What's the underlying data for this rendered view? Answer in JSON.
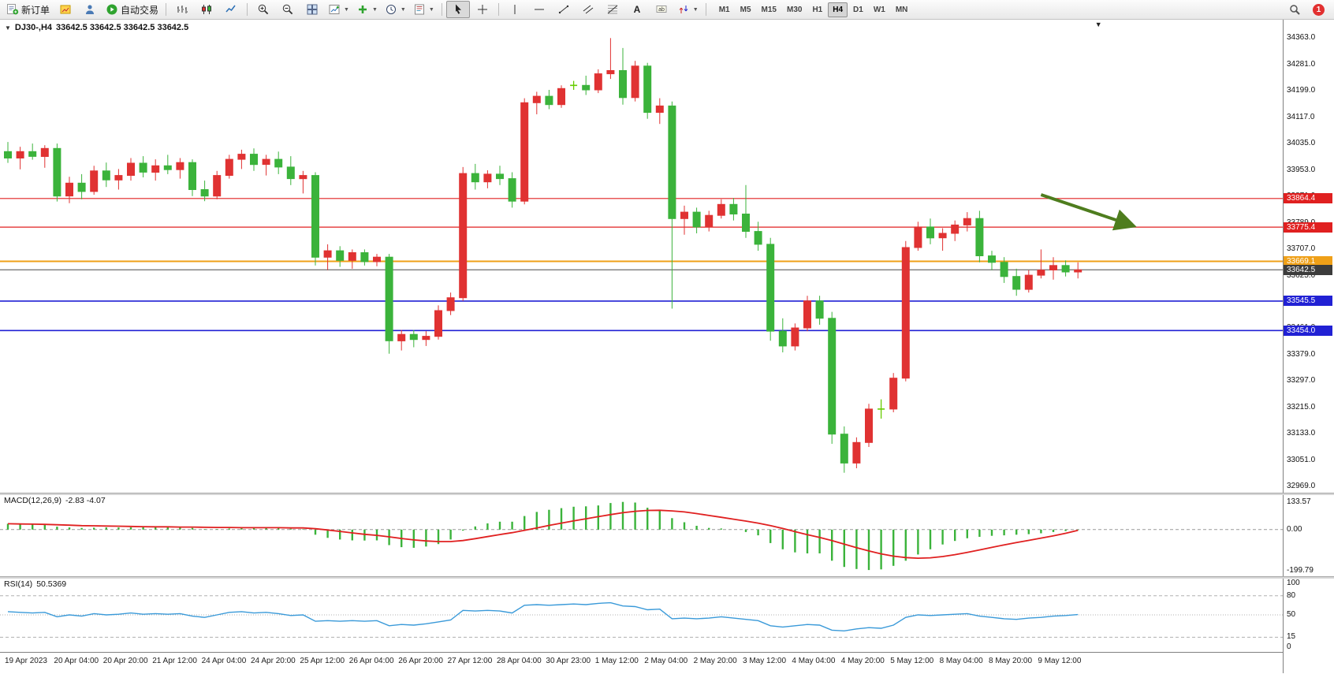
{
  "window": {
    "chart_title": "DJ30-,H4",
    "chart_quotes": "33642.5 33642.5 33642.5 33642.5"
  },
  "toolbar": {
    "notification_count": "1",
    "buttons": [
      {
        "name": "new-order-button",
        "glyph": "new-order",
        "label": "新订单"
      },
      {
        "name": "market-watch-button",
        "glyph": "market-watch"
      },
      {
        "name": "navigator-button",
        "glyph": "navigator"
      },
      {
        "name": "autotrading-button",
        "glyph": "autotrading",
        "label": "自动交易"
      },
      {
        "sep": true
      },
      {
        "name": "bar-chart-button",
        "glyph": "bars"
      },
      {
        "name": "candlestick-chart-button",
        "glyph": "candles"
      },
      {
        "name": "line-chart-button",
        "glyph": "line"
      },
      {
        "sep": true
      },
      {
        "name": "zoom-in-button",
        "glyph": "zoom-in"
      },
      {
        "name": "zoom-out-button",
        "glyph": "zoom-out"
      },
      {
        "name": "tile-windows-button",
        "glyph": "tile"
      },
      {
        "name": "new-chart-button",
        "glyph": "new-chart",
        "dropdown": true
      },
      {
        "name": "indicators-button",
        "glyph": "indicators",
        "dropdown": true
      },
      {
        "name": "periods-button",
        "glyph": "periods",
        "dropdown": true
      },
      {
        "name": "templates-button",
        "glyph": "templates",
        "dropdown": true
      },
      {
        "sep": true
      },
      {
        "name": "cursor-button",
        "glyph": "cursor",
        "active": true
      },
      {
        "name": "crosshair-button",
        "glyph": "crosshair"
      },
      {
        "sep": true
      },
      {
        "name": "vertical-line-button",
        "glyph": "vline"
      },
      {
        "name": "horizontal-line-button",
        "glyph": "hline"
      },
      {
        "name": "trendline-button",
        "glyph": "trendline"
      },
      {
        "name": "equidistant-channel-button",
        "glyph": "channel"
      },
      {
        "name": "fibonacci-button",
        "glyph": "fibo"
      },
      {
        "name": "text-button",
        "glyph": "text"
      },
      {
        "name": "text-label-button",
        "glyph": "text-label"
      },
      {
        "name": "arrows-button",
        "glyph": "arrows",
        "dropdown": true
      },
      {
        "sep": true
      }
    ],
    "timeframes": [
      {
        "label": "M1"
      },
      {
        "label": "M5"
      },
      {
        "label": "M15"
      },
      {
        "label": "M30"
      },
      {
        "label": "H1"
      },
      {
        "label": "H4",
        "active": true
      },
      {
        "label": "D1"
      },
      {
        "label": "W1"
      },
      {
        "label": "MN"
      }
    ]
  },
  "chart_data": {
    "type": "candlestick",
    "symbol": "DJ30-",
    "period": "H4",
    "colors": {
      "bull": "#e03232",
      "bear": "#3bb33b",
      "doji": "#66cc00",
      "level_red": "#e02020",
      "level_orange": "#efa018",
      "level_blue": "#2121d4",
      "bid_line": "#7a7a7a",
      "bid_label_bg": "#3c3c3c",
      "macd_bar": "#3bb33b",
      "macd_signal": "#e02020",
      "rsi_line": "#3a9ad9",
      "arrow": "#4e7d1e"
    },
    "price_axis_ticks": [
      "34363.0",
      "34281.0",
      "34199.0",
      "34117.0",
      "34035.0",
      "33953.0",
      "33871.0",
      "33789.0",
      "33707.0",
      "33625.0",
      "33543.0",
      "33461.0",
      "33379.0",
      "33297.0",
      "33215.0",
      "33133.0",
      "33051.0",
      "32969.0"
    ],
    "levels": [
      {
        "price": 33864.4,
        "label": "33864.4",
        "color": "red"
      },
      {
        "price": 33775.4,
        "label": "33775.4",
        "color": "red"
      },
      {
        "price": 33669.1,
        "label": "33669.1",
        "color": "orange"
      },
      {
        "price": 33642.5,
        "label": "33642.5",
        "color": "bid"
      },
      {
        "price": 33545.5,
        "label": "33545.5",
        "color": "blue"
      },
      {
        "price": 33454.0,
        "label": "33454.0",
        "color": "blue"
      }
    ],
    "arrow": {
      "from_index": 84,
      "from_price": 33876,
      "to_index": 91.3,
      "to_price": 33782
    },
    "label_interval": 4,
    "time_labels": [
      "19 Apr 2023",
      "20 Apr 04:00",
      "20 Apr 20:00",
      "21 Apr 12:00",
      "24 Apr 04:00",
      "24 Apr 20:00",
      "25 Apr 12:00",
      "26 Apr 04:00",
      "26 Apr 20:00",
      "27 Apr 12:00",
      "28 Apr 04:00",
      "30 Apr 23:00",
      "1 May 12:00",
      "2 May 04:00",
      "2 May 20:00",
      "3 May 12:00",
      "4 May 04:00",
      "4 May 20:00",
      "5 May 12:00",
      "8 May 04:00",
      "8 May 20:00",
      "9 May 12:00"
    ],
    "candles": [
      [
        34010,
        34040,
        33975,
        33990
      ],
      [
        33990,
        34025,
        33955,
        34010
      ],
      [
        34010,
        34035,
        33985,
        33995
      ],
      [
        33995,
        34030,
        33960,
        34020
      ],
      [
        34020,
        34035,
        33855,
        33872
      ],
      [
        33872,
        33932,
        33850,
        33912
      ],
      [
        33912,
        33940,
        33862,
        33886
      ],
      [
        33886,
        33966,
        33876,
        33950
      ],
      [
        33950,
        33976,
        33900,
        33922
      ],
      [
        33922,
        33956,
        33892,
        33936
      ],
      [
        33936,
        33990,
        33920,
        33974
      ],
      [
        33974,
        33996,
        33930,
        33946
      ],
      [
        33946,
        33986,
        33920,
        33966
      ],
      [
        33966,
        34000,
        33940,
        33954
      ],
      [
        33954,
        33990,
        33926,
        33976
      ],
      [
        33976,
        33986,
        33872,
        33892
      ],
      [
        33892,
        33920,
        33856,
        33872
      ],
      [
        33872,
        33950,
        33862,
        33936
      ],
      [
        33936,
        34000,
        33926,
        33986
      ],
      [
        33986,
        34016,
        33956,
        34002
      ],
      [
        34002,
        34020,
        33950,
        33970
      ],
      [
        33970,
        34000,
        33936,
        33986
      ],
      [
        33986,
        34010,
        33940,
        33962
      ],
      [
        33962,
        33996,
        33906,
        33926
      ],
      [
        33926,
        33950,
        33880,
        33936
      ],
      [
        33936,
        33946,
        33656,
        33682
      ],
      [
        33682,
        33722,
        33642,
        33702
      ],
      [
        33702,
        33716,
        33652,
        33672
      ],
      [
        33672,
        33706,
        33646,
        33696
      ],
      [
        33696,
        33706,
        33656,
        33668
      ],
      [
        33668,
        33692,
        33654,
        33682
      ],
      [
        33682,
        33692,
        33382,
        33422
      ],
      [
        33422,
        33456,
        33392,
        33442
      ],
      [
        33442,
        33456,
        33402,
        33426
      ],
      [
        33426,
        33452,
        33406,
        33436
      ],
      [
        33436,
        33532,
        33426,
        33516
      ],
      [
        33516,
        33572,
        33502,
        33556
      ],
      [
        33556,
        33962,
        33546,
        33942
      ],
      [
        33942,
        33972,
        33892,
        33916
      ],
      [
        33916,
        33952,
        33896,
        33940
      ],
      [
        33940,
        33966,
        33906,
        33926
      ],
      [
        33926,
        33946,
        33836,
        33856
      ],
      [
        33856,
        34176,
        33846,
        34162
      ],
      [
        34162,
        34196,
        34126,
        34182
      ],
      [
        34182,
        34202,
        34142,
        34156
      ],
      [
        34156,
        34216,
        34146,
        34206
      ],
      [
        34216,
        34230,
        34202,
        34216
      ],
      [
        34216,
        34246,
        34186,
        34202
      ],
      [
        34202,
        34266,
        34192,
        34252
      ],
      [
        34252,
        34363,
        34236,
        34262
      ],
      [
        34262,
        34332,
        34156,
        34178
      ],
      [
        34178,
        34292,
        34166,
        34276
      ],
      [
        34276,
        34286,
        34112,
        34132
      ],
      [
        34132,
        34176,
        34096,
        34152
      ],
      [
        34152,
        34166,
        33522,
        33802
      ],
      [
        33802,
        33842,
        33752,
        33822
      ],
      [
        33822,
        33836,
        33756,
        33776
      ],
      [
        33776,
        33826,
        33762,
        33812
      ],
      [
        33812,
        33862,
        33802,
        33846
      ],
      [
        33846,
        33866,
        33796,
        33816
      ],
      [
        33816,
        33906,
        33742,
        33762
      ],
      [
        33762,
        33792,
        33702,
        33722
      ],
      [
        33722,
        33742,
        33422,
        33452
      ],
      [
        33452,
        33492,
        33386,
        33406
      ],
      [
        33406,
        33476,
        33392,
        33462
      ],
      [
        33462,
        33562,
        33452,
        33546
      ],
      [
        33546,
        33562,
        33472,
        33492
      ],
      [
        33492,
        33512,
        33102,
        33132
      ],
      [
        33132,
        33156,
        33012,
        33042
      ],
      [
        33042,
        33122,
        33026,
        33106
      ],
      [
        33106,
        33226,
        33092,
        33210
      ],
      [
        33210,
        33240,
        33180,
        33210
      ],
      [
        33210,
        33322,
        33200,
        33306
      ],
      [
        33306,
        33732,
        33296,
        33712
      ],
      [
        33712,
        33792,
        33702,
        33776
      ],
      [
        33776,
        33802,
        33722,
        33742
      ],
      [
        33742,
        33772,
        33702,
        33756
      ],
      [
        33756,
        33796,
        33732,
        33782
      ],
      [
        33782,
        33822,
        33762,
        33802
      ],
      [
        33802,
        33826,
        33666,
        33686
      ],
      [
        33686,
        33702,
        33642,
        33666
      ],
      [
        33666,
        33682,
        33602,
        33622
      ],
      [
        33622,
        33646,
        33562,
        33582
      ],
      [
        33582,
        33642,
        33572,
        33626
      ],
      [
        33626,
        33706,
        33616,
        33642
      ],
      [
        33642,
        33682,
        33612,
        33656
      ],
      [
        33656,
        33672,
        33622,
        33636
      ],
      [
        33636,
        33666,
        33616,
        33642.5
      ]
    ],
    "indicators": {
      "macd": {
        "title": "MACD(12,26,9)",
        "values_text": "-2.83 -4.07",
        "axis_ticks": [
          "133.57",
          "0.00",
          "-199.79"
        ],
        "axis_values": [
          133.57,
          0,
          -199.79
        ],
        "histogram": [
          28,
          26,
          24,
          22,
          14,
          10,
          8,
          9,
          10,
          10,
          11,
          11,
          12,
          12,
          13,
          8,
          2,
          2,
          5,
          8,
          9,
          9,
          8,
          4,
          2,
          -25,
          -40,
          -48,
          -52,
          -53,
          -52,
          -75,
          -85,
          -88,
          -82,
          -70,
          -48,
          -5,
          15,
          30,
          38,
          38,
          65,
          85,
          95,
          103,
          110,
          112,
          116,
          128,
          133,
          130,
          105,
          95,
          55,
          35,
          18,
          8,
          5,
          0,
          -12,
          -28,
          -65,
          -95,
          -110,
          -115,
          -115,
          -150,
          -180,
          -190,
          -195,
          -192,
          -175,
          -150,
          -120,
          -95,
          -72,
          -55,
          -42,
          -35,
          -30,
          -28,
          -25,
          -22,
          -18,
          -12,
          -7,
          -2.83
        ],
        "signal": [
          28,
          27,
          26,
          25,
          23,
          21,
          19,
          18,
          17,
          16,
          15,
          14,
          13,
          13,
          12,
          12,
          11,
          10,
          10,
          9,
          9,
          9,
          9,
          8,
          8,
          4,
          -2,
          -9,
          -16,
          -23,
          -28,
          -35,
          -43,
          -50,
          -55,
          -58,
          -58,
          -53,
          -44,
          -34,
          -24,
          -15,
          -4,
          8,
          20,
          31,
          42,
          52,
          62,
          72,
          81,
          88,
          92,
          93,
          90,
          85,
          77,
          68,
          59,
          50,
          41,
          31,
          19,
          5,
          -10,
          -25,
          -38,
          -53,
          -70,
          -87,
          -103,
          -117,
          -128,
          -135,
          -138,
          -136,
          -130,
          -121,
          -110,
          -98,
          -86,
          -74,
          -63,
          -52,
          -41,
          -30,
          -18,
          -4.07
        ]
      },
      "rsi": {
        "title": "RSI(14)",
        "value_text": "50.5369",
        "axis_ticks": [
          "100",
          "80",
          "50",
          "15",
          "0"
        ],
        "axis_values": [
          100,
          80,
          50,
          15,
          0
        ],
        "levels": [
          80,
          50,
          15
        ],
        "values": [
          55,
          54,
          53,
          54,
          47,
          50,
          48,
          52,
          50,
          51,
          53,
          51,
          52,
          51,
          52,
          48,
          46,
          50,
          54,
          55,
          53,
          54,
          52,
          49,
          50,
          40,
          41,
          40,
          41,
          40,
          41,
          33,
          35,
          34,
          36,
          39,
          42,
          57,
          56,
          57,
          56,
          53,
          65,
          66,
          65,
          66,
          67,
          66,
          68,
          69,
          64,
          63,
          58,
          59,
          44,
          45,
          44,
          45,
          47,
          45,
          43,
          41,
          33,
          31,
          33,
          35,
          34,
          26,
          25,
          28,
          30,
          29,
          34,
          46,
          50,
          49,
          50,
          51,
          52,
          48,
          46,
          44,
          43,
          45,
          46,
          48,
          49,
          50.54
        ]
      }
    }
  }
}
